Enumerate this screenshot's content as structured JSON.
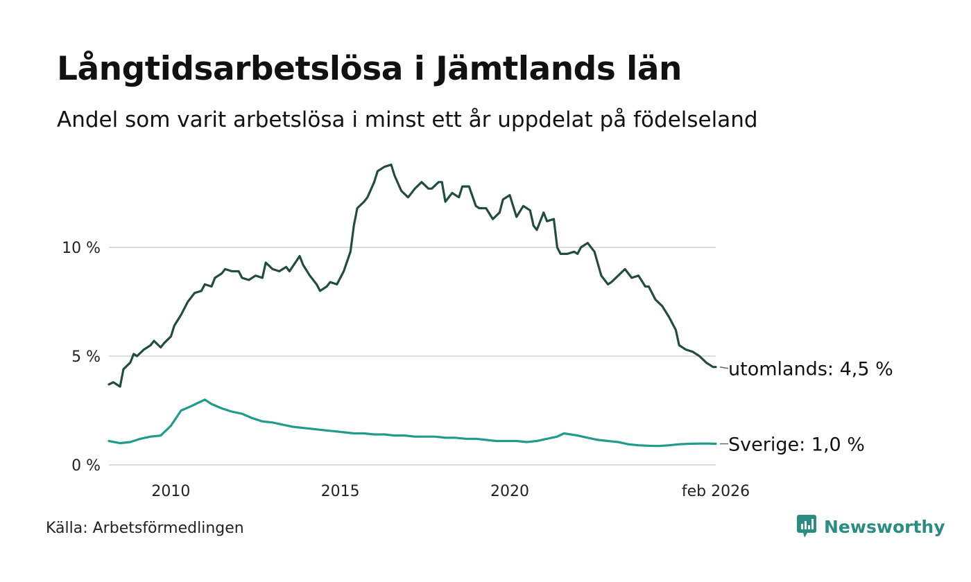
{
  "title": "Långtidsarbetslösa i Jämtlands län",
  "subtitle": "Andel som varit arbetslösa i minst ett år uppdelat på födelseland",
  "source": "Källa: Arbetsförmedlingen",
  "brand": {
    "name": "Newsworthy",
    "icon": "newsworthy-logo-icon",
    "color": "#2a8c83"
  },
  "chart_data": {
    "type": "line",
    "title": "Långtidsarbetslösa i Jämtlands län",
    "xlabel": "",
    "ylabel": "",
    "ylim": [
      0,
      14
    ],
    "xlim": [
      2008.17,
      2026.08
    ],
    "grid": true,
    "yticks": [
      {
        "value": 0,
        "label": "0 %"
      },
      {
        "value": 5,
        "label": "5 %"
      },
      {
        "value": 10,
        "label": "10 %"
      }
    ],
    "xticks": [
      {
        "value": 2010,
        "label": "2010"
      },
      {
        "value": 2015,
        "label": "2015"
      },
      {
        "value": 2020,
        "label": "2020"
      },
      {
        "value": 2026.08,
        "label": "feb 2026"
      }
    ],
    "series": [
      {
        "name": "utomlands",
        "end_label": "utomlands: 4,5 %",
        "color": "#234b43",
        "points": [
          [
            2008.17,
            3.7
          ],
          [
            2008.3,
            3.8
          ],
          [
            2008.5,
            3.6
          ],
          [
            2008.6,
            4.4
          ],
          [
            2008.8,
            4.7
          ],
          [
            2008.9,
            5.1
          ],
          [
            2009.0,
            5.0
          ],
          [
            2009.2,
            5.3
          ],
          [
            2009.4,
            5.5
          ],
          [
            2009.5,
            5.7
          ],
          [
            2009.7,
            5.4
          ],
          [
            2009.8,
            5.6
          ],
          [
            2010.0,
            5.9
          ],
          [
            2010.1,
            6.4
          ],
          [
            2010.3,
            6.9
          ],
          [
            2010.5,
            7.5
          ],
          [
            2010.7,
            7.9
          ],
          [
            2010.9,
            8.0
          ],
          [
            2011.0,
            8.3
          ],
          [
            2011.2,
            8.2
          ],
          [
            2011.3,
            8.6
          ],
          [
            2011.5,
            8.8
          ],
          [
            2011.6,
            9.0
          ],
          [
            2011.8,
            8.9
          ],
          [
            2012.0,
            8.9
          ],
          [
            2012.1,
            8.6
          ],
          [
            2012.3,
            8.5
          ],
          [
            2012.5,
            8.7
          ],
          [
            2012.7,
            8.6
          ],
          [
            2012.8,
            9.3
          ],
          [
            2013.0,
            9.0
          ],
          [
            2013.2,
            8.9
          ],
          [
            2013.4,
            9.1
          ],
          [
            2013.5,
            8.9
          ],
          [
            2013.8,
            9.6
          ],
          [
            2013.9,
            9.2
          ],
          [
            2014.1,
            8.7
          ],
          [
            2014.3,
            8.3
          ],
          [
            2014.4,
            8.0
          ],
          [
            2014.6,
            8.2
          ],
          [
            2014.7,
            8.4
          ],
          [
            2014.9,
            8.3
          ],
          [
            2015.1,
            8.9
          ],
          [
            2015.3,
            9.8
          ],
          [
            2015.4,
            11.0
          ],
          [
            2015.5,
            11.8
          ],
          [
            2015.7,
            12.1
          ],
          [
            2015.8,
            12.3
          ],
          [
            2016.0,
            13.0
          ],
          [
            2016.1,
            13.5
          ],
          [
            2016.3,
            13.7
          ],
          [
            2016.5,
            13.8
          ],
          [
            2016.6,
            13.3
          ],
          [
            2016.8,
            12.6
          ],
          [
            2017.0,
            12.3
          ],
          [
            2017.2,
            12.7
          ],
          [
            2017.4,
            13.0
          ],
          [
            2017.6,
            12.7
          ],
          [
            2017.7,
            12.7
          ],
          [
            2017.9,
            13.0
          ],
          [
            2018.0,
            13.0
          ],
          [
            2018.1,
            12.1
          ],
          [
            2018.3,
            12.5
          ],
          [
            2018.5,
            12.3
          ],
          [
            2018.6,
            12.8
          ],
          [
            2018.8,
            12.8
          ],
          [
            2019.0,
            11.9
          ],
          [
            2019.1,
            11.8
          ],
          [
            2019.3,
            11.8
          ],
          [
            2019.5,
            11.3
          ],
          [
            2019.7,
            11.6
          ],
          [
            2019.8,
            12.2
          ],
          [
            2020.0,
            12.4
          ],
          [
            2020.2,
            11.4
          ],
          [
            2020.4,
            11.9
          ],
          [
            2020.6,
            11.7
          ],
          [
            2020.7,
            11.0
          ],
          [
            2020.8,
            10.8
          ],
          [
            2021.0,
            11.6
          ],
          [
            2021.1,
            11.2
          ],
          [
            2021.3,
            11.3
          ],
          [
            2021.4,
            10.0
          ],
          [
            2021.5,
            9.7
          ],
          [
            2021.7,
            9.7
          ],
          [
            2021.9,
            9.8
          ],
          [
            2022.0,
            9.7
          ],
          [
            2022.1,
            10.0
          ],
          [
            2022.3,
            10.2
          ],
          [
            2022.5,
            9.8
          ],
          [
            2022.7,
            8.7
          ],
          [
            2022.9,
            8.3
          ],
          [
            2023.0,
            8.4
          ],
          [
            2023.2,
            8.7
          ],
          [
            2023.4,
            9.0
          ],
          [
            2023.6,
            8.6
          ],
          [
            2023.8,
            8.7
          ],
          [
            2024.0,
            8.2
          ],
          [
            2024.1,
            8.2
          ],
          [
            2024.3,
            7.6
          ],
          [
            2024.5,
            7.3
          ],
          [
            2024.7,
            6.8
          ],
          [
            2024.9,
            6.2
          ],
          [
            2025.0,
            5.5
          ],
          [
            2025.2,
            5.3
          ],
          [
            2025.4,
            5.2
          ],
          [
            2025.6,
            5.0
          ],
          [
            2025.8,
            4.7
          ],
          [
            2026.0,
            4.5
          ],
          [
            2026.08,
            4.5
          ]
        ]
      },
      {
        "name": "Sverige",
        "end_label": "Sverige: 1,0 %",
        "color": "#1f9a8c",
        "points": [
          [
            2008.17,
            1.1
          ],
          [
            2008.5,
            1.0
          ],
          [
            2008.8,
            1.05
          ],
          [
            2009.1,
            1.2
          ],
          [
            2009.4,
            1.3
          ],
          [
            2009.7,
            1.35
          ],
          [
            2010.0,
            1.8
          ],
          [
            2010.3,
            2.5
          ],
          [
            2010.6,
            2.7
          ],
          [
            2010.8,
            2.85
          ],
          [
            2011.0,
            3.0
          ],
          [
            2011.2,
            2.8
          ],
          [
            2011.5,
            2.6
          ],
          [
            2011.8,
            2.45
          ],
          [
            2012.1,
            2.35
          ],
          [
            2012.4,
            2.15
          ],
          [
            2012.7,
            2.0
          ],
          [
            2013.0,
            1.95
          ],
          [
            2013.3,
            1.85
          ],
          [
            2013.6,
            1.75
          ],
          [
            2013.9,
            1.7
          ],
          [
            2014.2,
            1.65
          ],
          [
            2014.5,
            1.6
          ],
          [
            2014.8,
            1.55
          ],
          [
            2015.1,
            1.5
          ],
          [
            2015.4,
            1.45
          ],
          [
            2015.7,
            1.45
          ],
          [
            2016.0,
            1.4
          ],
          [
            2016.3,
            1.4
          ],
          [
            2016.6,
            1.35
          ],
          [
            2016.9,
            1.35
          ],
          [
            2017.2,
            1.3
          ],
          [
            2017.5,
            1.3
          ],
          [
            2017.8,
            1.3
          ],
          [
            2018.1,
            1.25
          ],
          [
            2018.4,
            1.25
          ],
          [
            2018.7,
            1.2
          ],
          [
            2019.0,
            1.2
          ],
          [
            2019.3,
            1.15
          ],
          [
            2019.6,
            1.1
          ],
          [
            2019.9,
            1.1
          ],
          [
            2020.2,
            1.1
          ],
          [
            2020.5,
            1.05
          ],
          [
            2020.8,
            1.1
          ],
          [
            2021.1,
            1.2
          ],
          [
            2021.4,
            1.3
          ],
          [
            2021.6,
            1.45
          ],
          [
            2021.8,
            1.4
          ],
          [
            2022.0,
            1.35
          ],
          [
            2022.3,
            1.25
          ],
          [
            2022.6,
            1.15
          ],
          [
            2022.9,
            1.1
          ],
          [
            2023.2,
            1.05
          ],
          [
            2023.5,
            0.95
          ],
          [
            2023.8,
            0.9
          ],
          [
            2024.1,
            0.88
          ],
          [
            2024.4,
            0.87
          ],
          [
            2024.7,
            0.9
          ],
          [
            2025.0,
            0.95
          ],
          [
            2025.3,
            0.97
          ],
          [
            2025.6,
            0.98
          ],
          [
            2025.9,
            0.98
          ],
          [
            2026.08,
            0.97
          ]
        ]
      }
    ]
  }
}
